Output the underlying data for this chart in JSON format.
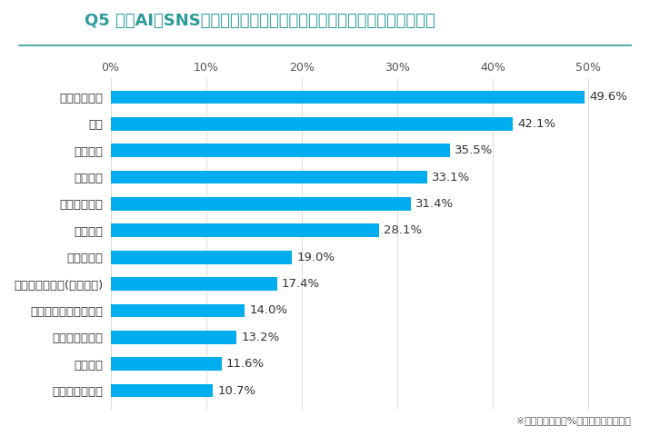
{
  "title": "Q5 生成AIをSNSマーケティングで活用しているのはどの分野ですか？",
  "categories": [
    "多言語への対応",
    "計画作成",
    "背景調査の実施",
    "ハッシュタグの最適化",
    "チャットボッド(自動返信)",
    "データ解析",
    "音声生成",
    "投稿文の作成",
    "動画生成",
    "画像生成",
    "校閲",
    "アイデア創出"
  ],
  "values": [
    10.7,
    11.6,
    13.2,
    14.0,
    17.4,
    19.0,
    28.1,
    31.4,
    33.1,
    35.5,
    42.1,
    49.6
  ],
  "labels": [
    "10.7%",
    "11.6%",
    "13.2%",
    "14.0%",
    "17.4%",
    "19.0%",
    "28.1%",
    "31.4%",
    "33.1%",
    "35.5%",
    "42.1%",
    "49.6%"
  ],
  "bar_color": "#00AEEF",
  "title_color": "#2E9B9B",
  "title_fontsize": 13,
  "label_fontsize": 9.5,
  "value_fontsize": 9.5,
  "tick_fontsize": 9,
  "xlim": [
    0,
    55
  ],
  "background_color": "#ffffff",
  "footer_text": "※「その他」は０%の回答となりました",
  "title_underline_color": "#2E9B9B",
  "xticks": [
    0,
    10,
    20,
    30,
    40,
    50
  ],
  "xtick_labels": [
    "0%",
    "10%",
    "20%",
    "30%",
    "40%",
    "50%"
  ],
  "bar_height": 0.5
}
